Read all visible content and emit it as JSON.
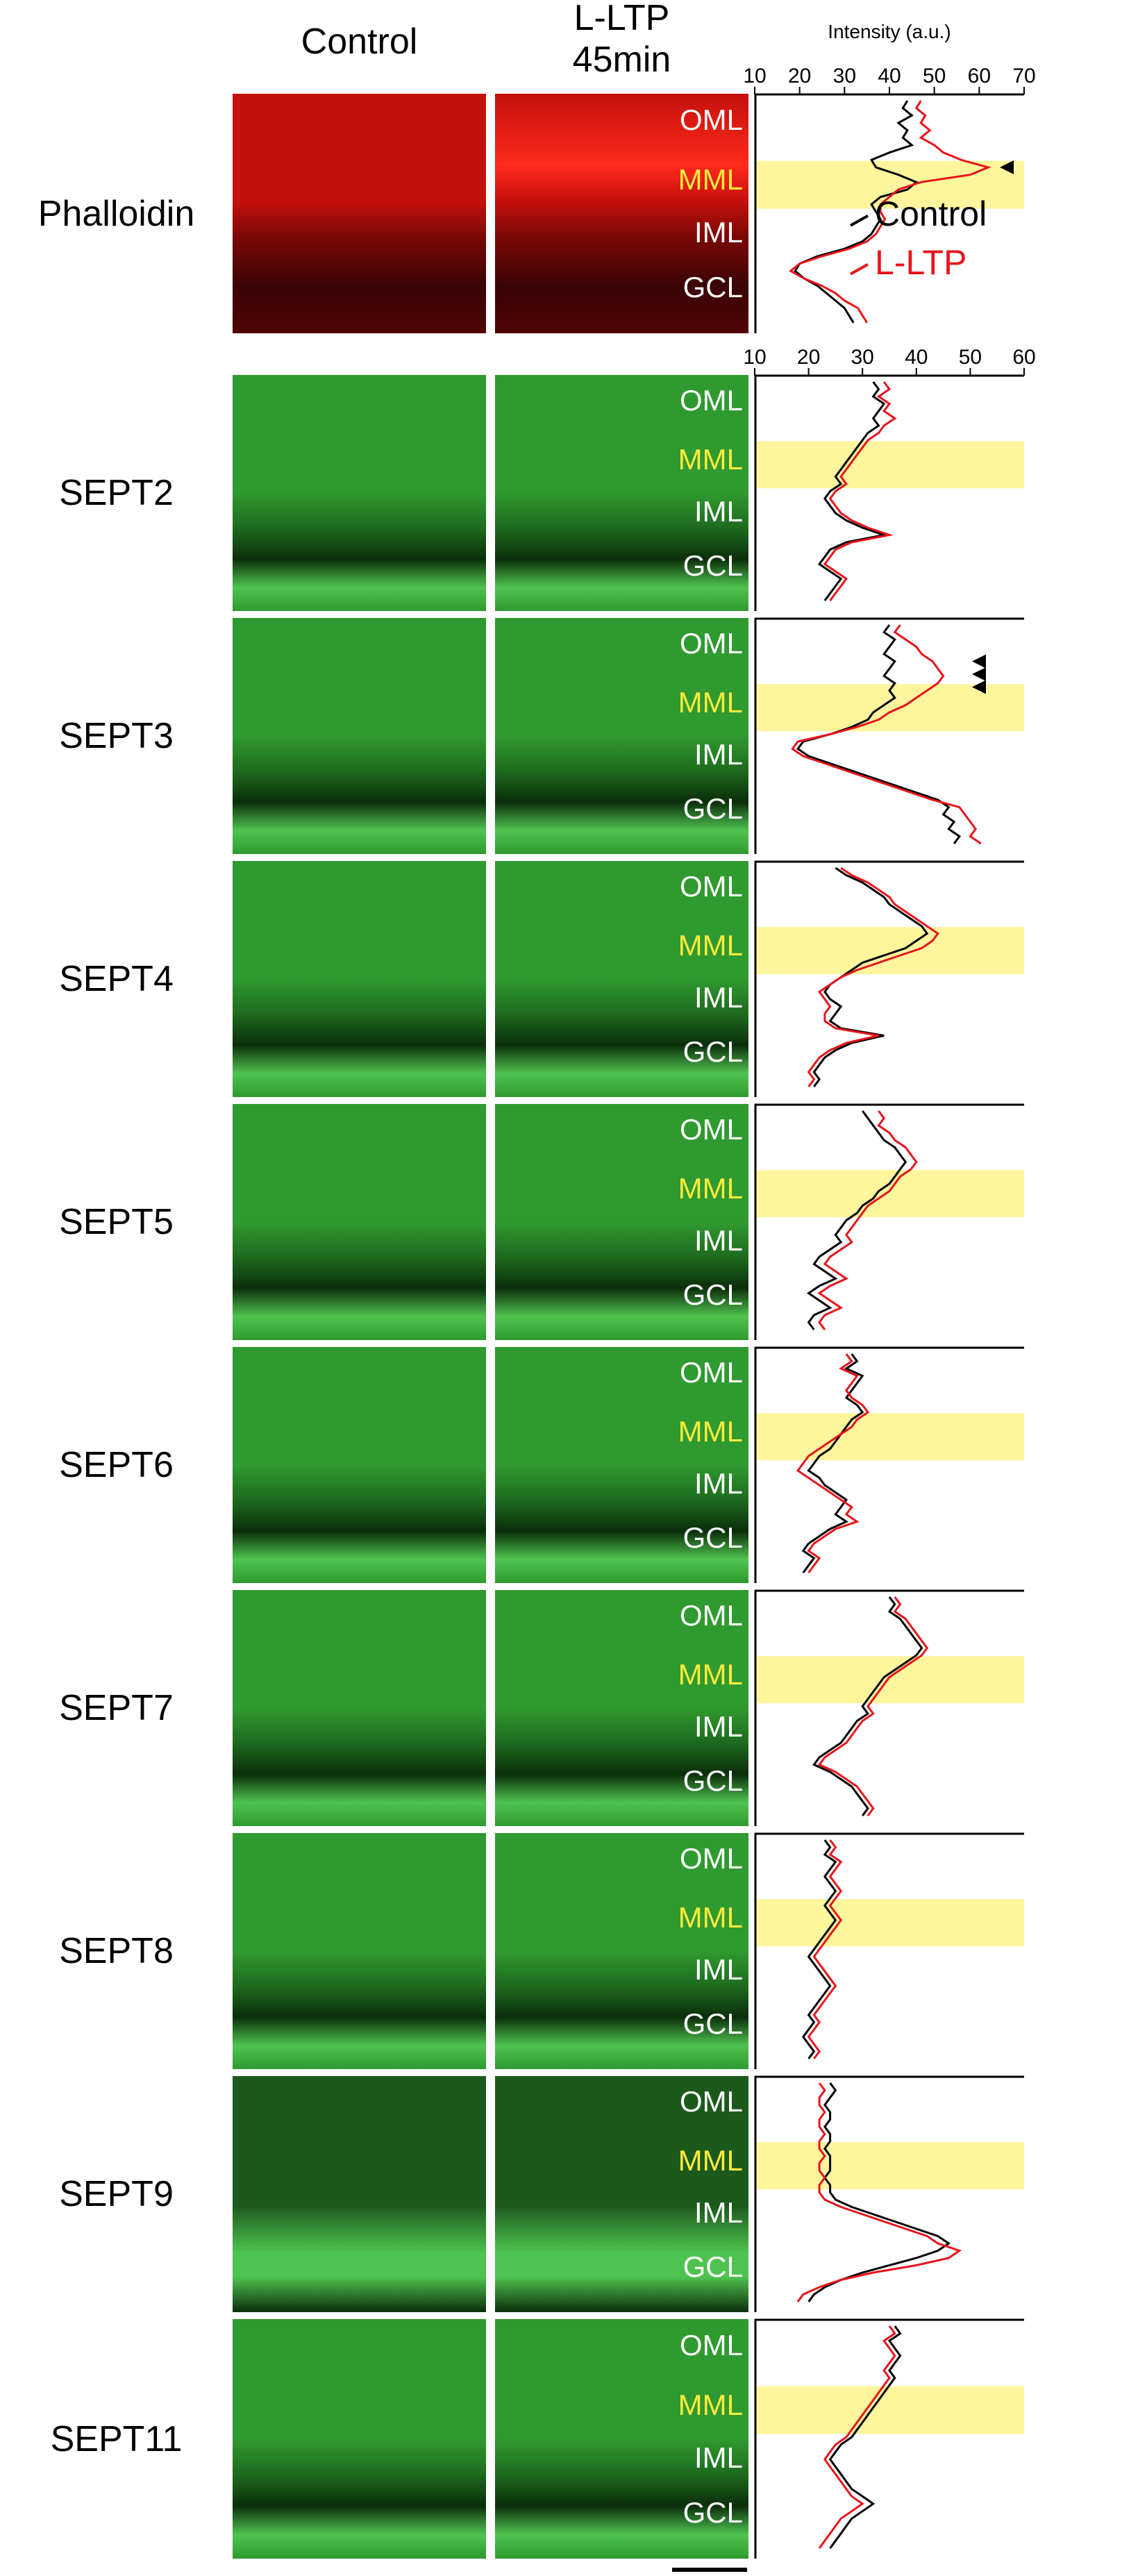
{
  "column_headers": {
    "control": "Control",
    "lltp_line1": "L-LTP",
    "lltp_line2": "45min"
  },
  "axis_title": "Intensity (a.u.)",
  "layer_labels": [
    "OML",
    "MML",
    "IML",
    "GCL"
  ],
  "legend": {
    "control": "Control",
    "lltp": "L-LTP"
  },
  "colors": {
    "control_line": "#000000",
    "lltp_line": "#e8141b",
    "mml_band": "#fff59d",
    "mml_text": "#ffeb3b",
    "phalloidin_stain": "#c4100c",
    "septin_stain": "#2f9a2f"
  },
  "scale_bar": true,
  "chart_data": [
    {
      "type": "line",
      "title": "Phalloidin",
      "stain": "red",
      "x_ticks": [
        10,
        20,
        30,
        40,
        50,
        60,
        70
      ],
      "xlim": [
        10,
        70
      ],
      "arrowheads": 1,
      "series": [
        {
          "name": "Control",
          "values": [
            44,
            43,
            45,
            42,
            44,
            43,
            45,
            40,
            36,
            37,
            42,
            46,
            44,
            38,
            36,
            37,
            38,
            37,
            36,
            34,
            30,
            24,
            20,
            19,
            21,
            24,
            26,
            28,
            30,
            31,
            32
          ]
        },
        {
          "name": "L-LTP",
          "values": [
            47,
            46,
            48,
            47,
            49,
            47,
            50,
            52,
            56,
            62,
            58,
            47,
            42,
            40,
            38,
            38,
            39,
            38,
            37,
            35,
            31,
            25,
            20,
            18,
            21,
            25,
            28,
            30,
            33,
            34,
            35
          ]
        }
      ]
    },
    {
      "type": "line",
      "title": "SEPT2",
      "stain": "green",
      "x_ticks": [
        10,
        20,
        30,
        40,
        50,
        60
      ],
      "xlim": [
        10,
        60
      ],
      "arrowheads": 0,
      "series": [
        {
          "name": null,
          "values": [
            32,
            33,
            32,
            34,
            33,
            32,
            33,
            31,
            30,
            29,
            28,
            27,
            26,
            25,
            26,
            24,
            23,
            24,
            25,
            27,
            30,
            34,
            27,
            24,
            23,
            22,
            24,
            26,
            25,
            24,
            23
          ]
        },
        {
          "name": null,
          "values": [
            34,
            35,
            33,
            35,
            34,
            36,
            34,
            33,
            31,
            30,
            29,
            28,
            27,
            26,
            27,
            25,
            24,
            25,
            26,
            28,
            31,
            35,
            28,
            25,
            24,
            23,
            25,
            27,
            26,
            25,
            24
          ]
        }
      ]
    },
    {
      "type": "line",
      "title": "SEPT3",
      "stain": "green",
      "x_ticks": [],
      "xlim": [
        10,
        60
      ],
      "arrowheads": 3,
      "series": [
        {
          "name": null,
          "values": [
            35,
            34,
            36,
            35,
            34,
            36,
            35,
            34,
            36,
            35,
            36,
            34,
            32,
            31,
            28,
            24,
            19,
            18,
            20,
            24,
            28,
            32,
            36,
            40,
            44,
            46,
            45,
            47,
            46,
            48,
            47
          ]
        },
        {
          "name": null,
          "values": [
            37,
            36,
            38,
            40,
            41,
            43,
            44,
            45,
            44,
            42,
            40,
            38,
            35,
            33,
            29,
            24,
            18,
            17,
            19,
            23,
            27,
            31,
            35,
            39,
            43,
            48,
            49,
            50,
            51,
            50,
            52
          ]
        }
      ]
    },
    {
      "type": "line",
      "title": "SEPT4",
      "stain": "green",
      "x_ticks": [],
      "xlim": [
        10,
        60
      ],
      "arrowheads": 0,
      "series": [
        {
          "name": null,
          "values": [
            25,
            27,
            30,
            32,
            34,
            35,
            37,
            39,
            41,
            42,
            40,
            38,
            34,
            30,
            28,
            26,
            24,
            23,
            24,
            26,
            25,
            24,
            26,
            34,
            28,
            25,
            23,
            22,
            21,
            22,
            21
          ]
        },
        {
          "name": null,
          "values": [
            26,
            28,
            31,
            33,
            35,
            36,
            38,
            40,
            42,
            44,
            43,
            41,
            37,
            33,
            29,
            26,
            24,
            22,
            23,
            24,
            23,
            23,
            25,
            33,
            27,
            24,
            22,
            21,
            20,
            21,
            20
          ]
        }
      ]
    },
    {
      "type": "line",
      "title": "SEPT5",
      "stain": "green",
      "x_ticks": [],
      "xlim": [
        10,
        60
      ],
      "arrowheads": 0,
      "series": [
        {
          "name": null,
          "values": [
            30,
            31,
            32,
            33,
            34,
            36,
            37,
            38,
            37,
            36,
            35,
            33,
            32,
            30,
            29,
            27,
            26,
            25,
            26,
            24,
            22,
            21,
            23,
            25,
            22,
            20,
            22,
            24,
            21,
            20,
            21
          ]
        },
        {
          "name": null,
          "values": [
            33,
            34,
            33,
            35,
            36,
            38,
            39,
            40,
            39,
            37,
            36,
            35,
            33,
            31,
            30,
            29,
            28,
            27,
            28,
            26,
            24,
            23,
            25,
            27,
            24,
            22,
            24,
            26,
            23,
            22,
            23
          ]
        }
      ]
    },
    {
      "type": "line",
      "title": "SEPT6",
      "stain": "green",
      "x_ticks": [],
      "xlim": [
        10,
        60
      ],
      "arrowheads": 0,
      "series": [
        {
          "name": null,
          "values": [
            28,
            29,
            27,
            30,
            29,
            28,
            27,
            29,
            30,
            28,
            27,
            26,
            25,
            24,
            22,
            21,
            20,
            22,
            23,
            25,
            27,
            26,
            25,
            27,
            24,
            22,
            20,
            19,
            21,
            20,
            19
          ]
        },
        {
          "name": null,
          "values": [
            27,
            28,
            26,
            29,
            28,
            27,
            28,
            30,
            31,
            29,
            28,
            26,
            24,
            22,
            20,
            19,
            18,
            20,
            22,
            24,
            26,
            28,
            27,
            29,
            25,
            23,
            21,
            20,
            22,
            21,
            20
          ]
        }
      ]
    },
    {
      "type": "line",
      "title": "SEPT7",
      "stain": "green",
      "x_ticks": [],
      "xlim": [
        10,
        60
      ],
      "arrowheads": 0,
      "series": [
        {
          "name": null,
          "values": [
            35,
            36,
            35,
            37,
            38,
            39,
            40,
            41,
            40,
            38,
            36,
            34,
            33,
            32,
            31,
            30,
            31,
            29,
            28,
            27,
            26,
            24,
            22,
            21,
            24,
            26,
            28,
            29,
            30,
            31,
            30
          ]
        },
        {
          "name": null,
          "values": [
            36,
            37,
            36,
            38,
            39,
            40,
            41,
            42,
            41,
            39,
            37,
            35,
            34,
            33,
            32,
            31,
            32,
            30,
            29,
            28,
            27,
            25,
            23,
            22,
            25,
            27,
            29,
            30,
            31,
            32,
            31
          ]
        }
      ]
    },
    {
      "type": "line",
      "title": "SEPT8",
      "stain": "green",
      "x_ticks": [],
      "xlim": [
        10,
        60
      ],
      "arrowheads": 0,
      "series": [
        {
          "name": null,
          "values": [
            23,
            24,
            23,
            25,
            24,
            23,
            24,
            25,
            24,
            23,
            24,
            25,
            24,
            23,
            22,
            21,
            20,
            21,
            22,
            23,
            24,
            23,
            22,
            21,
            20,
            21,
            20,
            19,
            20,
            21,
            20
          ]
        },
        {
          "name": null,
          "values": [
            24,
            25,
            24,
            26,
            25,
            24,
            25,
            26,
            25,
            24,
            25,
            26,
            25,
            24,
            23,
            22,
            21,
            22,
            23,
            24,
            25,
            24,
            23,
            22,
            21,
            22,
            21,
            20,
            21,
            22,
            21
          ]
        }
      ]
    },
    {
      "type": "line",
      "title": "SEPT9",
      "stain": "green",
      "x_ticks": [],
      "xlim": [
        10,
        60
      ],
      "arrowheads": 0,
      "series": [
        {
          "name": null,
          "values": [
            24,
            25,
            24,
            23,
            24,
            24,
            23,
            24,
            24,
            23,
            24,
            24,
            24,
            23,
            24,
            24,
            25,
            28,
            32,
            36,
            40,
            44,
            46,
            44,
            40,
            35,
            30,
            26,
            23,
            21,
            20
          ]
        },
        {
          "name": null,
          "values": [
            22,
            23,
            22,
            22,
            23,
            22,
            22,
            23,
            22,
            22,
            23,
            22,
            22,
            23,
            22,
            22,
            23,
            26,
            30,
            34,
            38,
            42,
            44,
            48,
            46,
            40,
            32,
            26,
            22,
            19,
            18
          ]
        }
      ]
    },
    {
      "type": "line",
      "title": "SEPT11",
      "stain": "green",
      "x_ticks": [],
      "xlim": [
        10,
        60
      ],
      "arrowheads": 0,
      "series": [
        {
          "name": null,
          "values": [
            36,
            37,
            35,
            36,
            37,
            36,
            35,
            36,
            35,
            34,
            33,
            32,
            31,
            30,
            29,
            28,
            26,
            25,
            24,
            25,
            26,
            27,
            28,
            30,
            32,
            30,
            28,
            27,
            26,
            25,
            24
          ]
        },
        {
          "name": null,
          "values": [
            35,
            36,
            34,
            35,
            36,
            35,
            34,
            35,
            34,
            33,
            32,
            31,
            30,
            29,
            28,
            27,
            25,
            24,
            23,
            24,
            25,
            26,
            27,
            28,
            30,
            28,
            26,
            25,
            24,
            23,
            22
          ]
        }
      ]
    }
  ]
}
